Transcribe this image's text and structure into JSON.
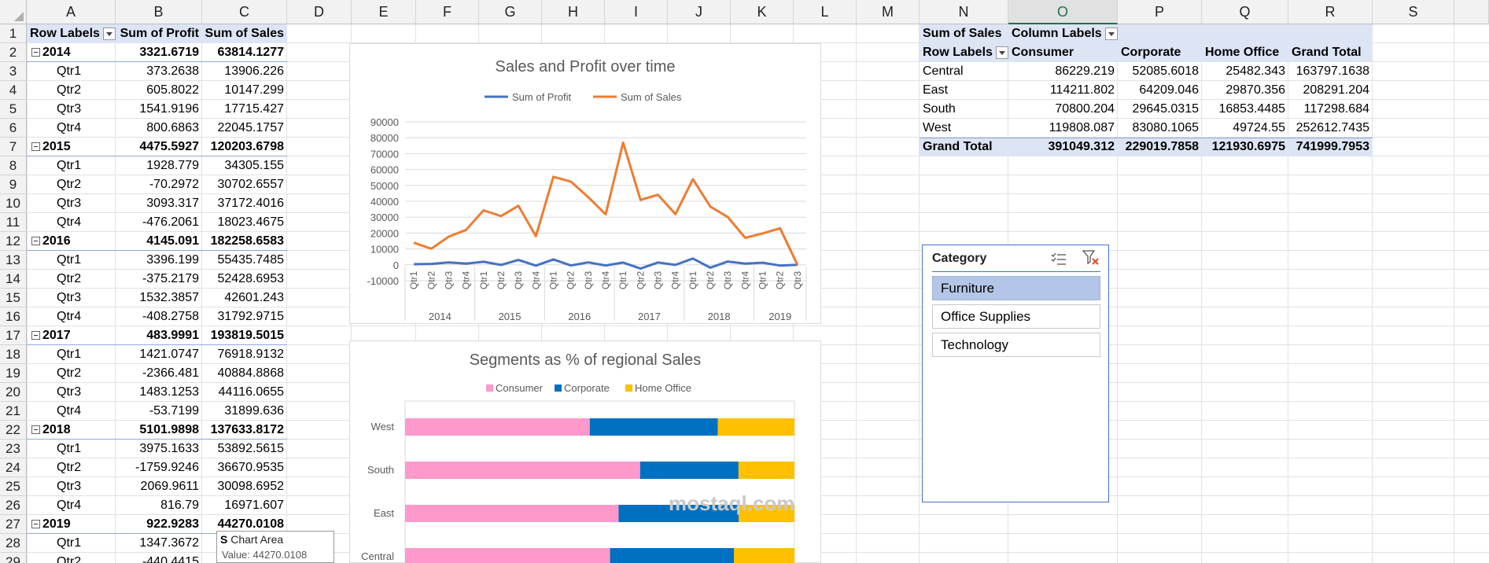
{
  "columns": [
    "A",
    "B",
    "C",
    "D",
    "E",
    "F",
    "G",
    "H",
    "I",
    "J",
    "K",
    "L",
    "M",
    "N",
    "O",
    "P",
    "Q",
    "R",
    "S"
  ],
  "selected_column": "O",
  "row_numbers": [
    "1",
    "2",
    "3",
    "4",
    "5",
    "6",
    "7",
    "8",
    "9",
    "10",
    "11",
    "12",
    "13",
    "14",
    "15",
    "16",
    "17",
    "18",
    "19",
    "20",
    "21",
    "22",
    "23",
    "24",
    "25",
    "26",
    "27",
    "28",
    "29"
  ],
  "pivot1": {
    "headers": [
      "Row Labels",
      "Sum of Profit",
      "Sum of Sales"
    ],
    "rows": [
      {
        "label": "2014",
        "profit": "3321.6719",
        "sales": "63814.1277",
        "year": true
      },
      {
        "label": "Qtr1",
        "profit": "373.2638",
        "sales": "13906.226"
      },
      {
        "label": "Qtr2",
        "profit": "605.8022",
        "sales": "10147.299"
      },
      {
        "label": "Qtr3",
        "profit": "1541.9196",
        "sales": "17715.427"
      },
      {
        "label": "Qtr4",
        "profit": "800.6863",
        "sales": "22045.1757"
      },
      {
        "label": "2015",
        "profit": "4475.5927",
        "sales": "120203.6798",
        "year": true
      },
      {
        "label": "Qtr1",
        "profit": "1928.779",
        "sales": "34305.155"
      },
      {
        "label": "Qtr2",
        "profit": "-70.2972",
        "sales": "30702.6557"
      },
      {
        "label": "Qtr3",
        "profit": "3093.317",
        "sales": "37172.4016"
      },
      {
        "label": "Qtr4",
        "profit": "-476.2061",
        "sales": "18023.4675"
      },
      {
        "label": "2016",
        "profit": "4145.091",
        "sales": "182258.6583",
        "year": true
      },
      {
        "label": "Qtr1",
        "profit": "3396.199",
        "sales": "55435.7485"
      },
      {
        "label": "Qtr2",
        "profit": "-375.2179",
        "sales": "52428.6953"
      },
      {
        "label": "Qtr3",
        "profit": "1532.3857",
        "sales": "42601.243"
      },
      {
        "label": "Qtr4",
        "profit": "-408.2758",
        "sales": "31792.9715"
      },
      {
        "label": "2017",
        "profit": "483.9991",
        "sales": "193819.5015",
        "year": true
      },
      {
        "label": "Qtr1",
        "profit": "1421.0747",
        "sales": "76918.9132"
      },
      {
        "label": "Qtr2",
        "profit": "-2366.481",
        "sales": "40884.8868"
      },
      {
        "label": "Qtr3",
        "profit": "1483.1253",
        "sales": "44116.0655"
      },
      {
        "label": "Qtr4",
        "profit": "-53.7199",
        "sales": "31899.636"
      },
      {
        "label": "2018",
        "profit": "5101.9898",
        "sales": "137633.8172",
        "year": true
      },
      {
        "label": "Qtr1",
        "profit": "3975.1633",
        "sales": "53892.5615"
      },
      {
        "label": "Qtr2",
        "profit": "-1759.9246",
        "sales": "36670.9535"
      },
      {
        "label": "Qtr3",
        "profit": "2069.9611",
        "sales": "30098.6952"
      },
      {
        "label": "Qtr4",
        "profit": "816.79",
        "sales": "16971.607"
      },
      {
        "label": "2019",
        "profit": "922.9283",
        "sales": "44270.0108",
        "year": true
      },
      {
        "label": "Qtr1",
        "profit": "1347.3672",
        "sales": ""
      },
      {
        "label": "Qtr2",
        "profit": "-440.4415",
        "sales": ""
      }
    ]
  },
  "pivot2": {
    "corner": "Sum of Sales",
    "column_labels": "Column Labels",
    "row_labels": "Row Labels",
    "headers": [
      "Consumer",
      "Corporate",
      "Home Office",
      "Grand Total"
    ],
    "rows": [
      {
        "label": "Central",
        "values": [
          "86229.219",
          "52085.6018",
          "25482.343",
          "163797.1638"
        ]
      },
      {
        "label": "East",
        "values": [
          "114211.802",
          "64209.046",
          "29870.356",
          "208291.204"
        ]
      },
      {
        "label": "South",
        "values": [
          "70800.204",
          "29645.0315",
          "16853.4485",
          "117298.684"
        ]
      },
      {
        "label": "West",
        "values": [
          "119808.087",
          "83080.1065",
          "49724.55",
          "252612.7435"
        ]
      }
    ],
    "total": {
      "label": "Grand Total",
      "values": [
        "391049.312",
        "229019.7858",
        "121930.6975",
        "741999.7953"
      ]
    }
  },
  "slicer": {
    "title": "Category",
    "items": [
      {
        "label": "Furniture",
        "selected": true
      },
      {
        "label": "Office Supplies",
        "selected": false
      },
      {
        "label": "Technology",
        "selected": false
      }
    ]
  },
  "tooltip": {
    "title": "Chart Area",
    "value": "Value: 44270.0108"
  },
  "watermark": "mostaql.com",
  "chart_data": [
    {
      "type": "line",
      "title": "Sales and Profit over time",
      "legend_position": "top",
      "grid": true,
      "ylim": [
        -10000,
        90000
      ],
      "y_ticks": [
        "90000",
        "80000",
        "70000",
        "60000",
        "50000",
        "40000",
        "30000",
        "20000",
        "10000",
        "0",
        "-10000"
      ],
      "x": [
        "Qtr1",
        "Qtr2",
        "Qtr3",
        "Qtr4",
        "Qtr1",
        "Qtr2",
        "Qtr3",
        "Qtr4",
        "Qtr1",
        "Qtr2",
        "Qtr3",
        "Qtr4",
        "Qtr1",
        "Qtr2",
        "Qtr3",
        "Qtr4",
        "Qtr1",
        "Qtr2",
        "Qtr3",
        "Qtr4",
        "Qtr1",
        "Qtr2",
        "Qtr3"
      ],
      "x_groups": [
        "2014",
        "2015",
        "2016",
        "2017",
        "2018",
        "2019"
      ],
      "series": [
        {
          "name": "Sum of Profit",
          "color": "#4472c4",
          "values": [
            373.26,
            605.8,
            1541.92,
            800.69,
            1928.78,
            -70.3,
            3093.32,
            -476.21,
            3396.2,
            -375.22,
            1532.39,
            -408.28,
            1421.07,
            -2366.48,
            1483.13,
            -53.72,
            3975.16,
            -1759.92,
            2069.96,
            816.79,
            1347.37,
            -440.44,
            16
          ]
        },
        {
          "name": "Sum of Sales",
          "color": "#ed7d31",
          "values": [
            13906.23,
            10147.3,
            17715.43,
            22045.18,
            34305.16,
            30702.66,
            37172.4,
            18023.47,
            55435.75,
            52428.7,
            42601.24,
            31792.97,
            76918.91,
            40884.89,
            44116.07,
            31899.64,
            53892.56,
            36670.95,
            30098.7,
            16971.61,
            19800,
            23000,
            0
          ]
        }
      ]
    },
    {
      "type": "bar",
      "stacked": "percent",
      "orientation": "horizontal",
      "title": "Segments as % of regional Sales",
      "legend_position": "top",
      "categories": [
        "West",
        "South",
        "East",
        "Central"
      ],
      "series": [
        {
          "name": "Consumer",
          "color": "#ff99cc",
          "values": [
            119808.087,
            70800.204,
            114211.802,
            86229.219
          ]
        },
        {
          "name": "Corporate",
          "color": "#0070c0",
          "values": [
            83080.1065,
            29645.0315,
            64209.046,
            52085.6018
          ]
        },
        {
          "name": "Home Office",
          "color": "#ffc000",
          "values": [
            49724.55,
            16853.4485,
            29870.356,
            25482.343
          ]
        }
      ]
    }
  ]
}
